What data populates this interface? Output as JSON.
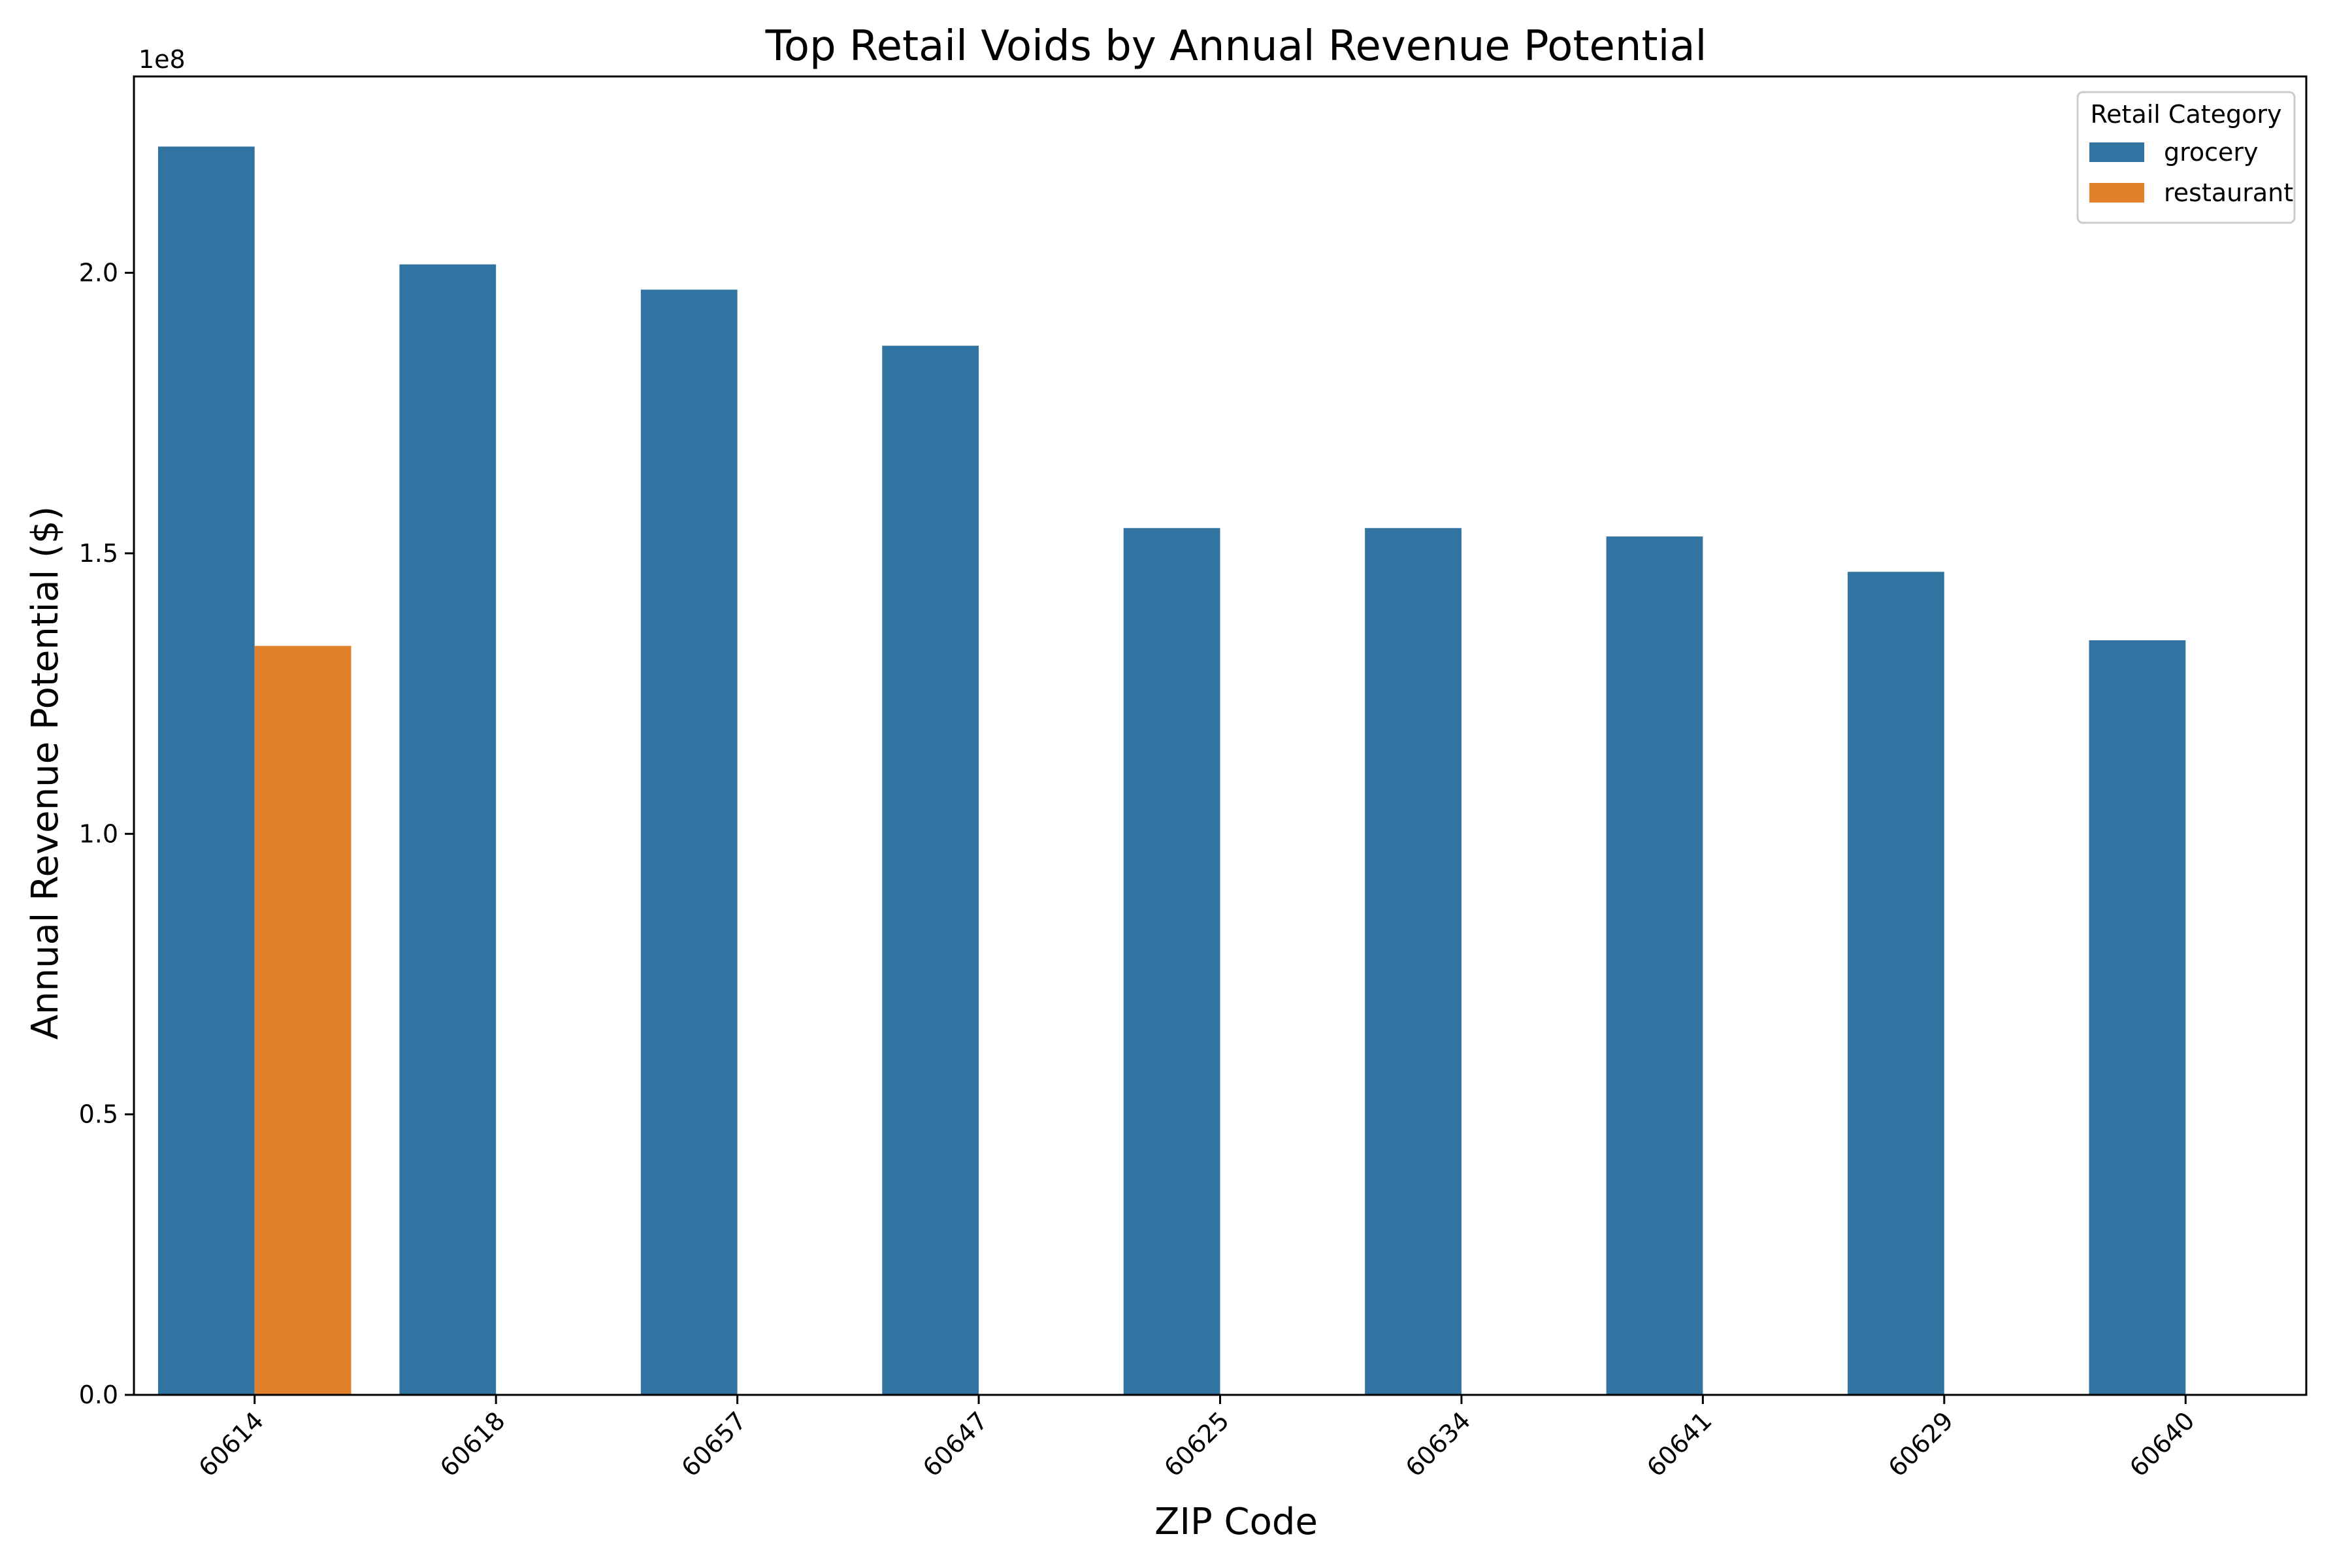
{
  "chart_data": {
    "type": "bar",
    "title": "Top Retail Voids by Annual Revenue Potential",
    "xlabel": "ZIP Code",
    "ylabel": "Annual Revenue Potential ($)",
    "y_offset_label": "1e8",
    "ylim": [
      0,
      2.35
    ],
    "y_ticks": [
      0.0,
      0.5,
      1.0,
      1.5,
      2.0
    ],
    "y_tick_labels": [
      "0.0",
      "0.5",
      "1.0",
      "1.5",
      "2.0"
    ],
    "categories": [
      "60614",
      "60618",
      "60657",
      "60647",
      "60625",
      "60634",
      "60641",
      "60629",
      "60640"
    ],
    "series": [
      {
        "name": "grocery",
        "color": "#3274a1",
        "values": [
          2.225,
          2.015,
          1.97,
          1.87,
          1.545,
          1.545,
          1.53,
          1.467,
          1.345
        ]
      },
      {
        "name": "restaurant",
        "color": "#e1812c",
        "values": [
          1.335,
          null,
          null,
          null,
          null,
          null,
          null,
          null,
          null
        ]
      }
    ],
    "legend": {
      "title": "Retail Category",
      "placement": "top-right"
    },
    "grid": false
  }
}
